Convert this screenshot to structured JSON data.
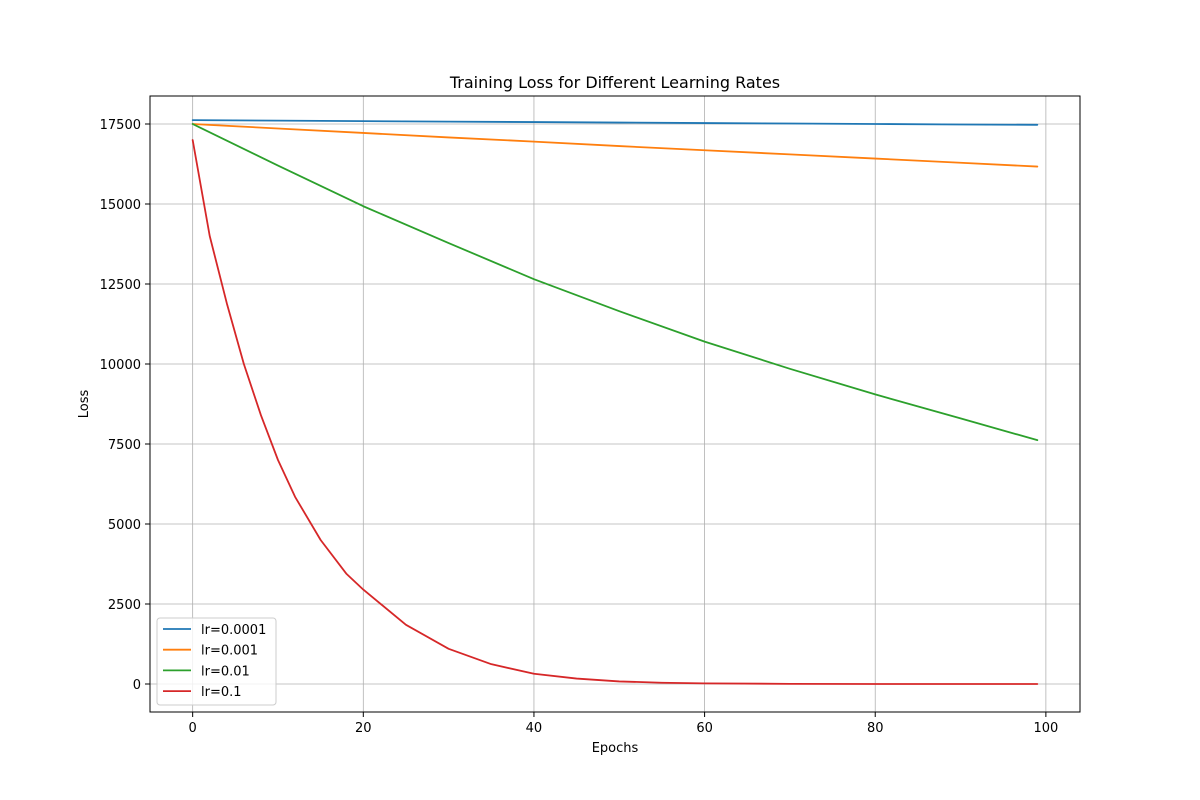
{
  "chart_data": {
    "type": "line",
    "title": "Training Loss for Different Learning Rates",
    "xlabel": "Epochs",
    "ylabel": "Loss",
    "xlim": [
      -5,
      104
    ],
    "ylim": [
      -875,
      18375
    ],
    "xticks": [
      0,
      20,
      40,
      60,
      80,
      100
    ],
    "yticks": [
      0,
      2500,
      5000,
      7500,
      10000,
      12500,
      15000,
      17500
    ],
    "grid": true,
    "legend_position": "lower-left",
    "series": [
      {
        "name": "lr=0.0001",
        "color": "#1f77b4",
        "x": [
          0,
          10,
          20,
          30,
          40,
          50,
          60,
          70,
          80,
          90,
          99
        ],
        "values": [
          17620,
          17605,
          17590,
          17575,
          17560,
          17545,
          17530,
          17515,
          17500,
          17485,
          17475
        ]
      },
      {
        "name": "lr=0.001",
        "color": "#ff7f0e",
        "x": [
          0,
          10,
          20,
          30,
          40,
          50,
          60,
          70,
          80,
          90,
          99
        ],
        "values": [
          17500,
          17360,
          17220,
          17080,
          16950,
          16810,
          16680,
          16550,
          16420,
          16290,
          16170
        ]
      },
      {
        "name": "lr=0.01",
        "color": "#2ca02c",
        "x": [
          0,
          10,
          20,
          30,
          40,
          50,
          60,
          70,
          80,
          90,
          99
        ],
        "values": [
          17500,
          16200,
          14930,
          13780,
          12650,
          11650,
          10700,
          9850,
          9050,
          8300,
          7620
        ]
      },
      {
        "name": "lr=0.1",
        "color": "#d62728",
        "x": [
          0,
          2,
          4,
          6,
          8,
          10,
          12,
          15,
          18,
          20,
          25,
          30,
          35,
          40,
          45,
          50,
          55,
          60,
          70,
          80,
          90,
          99
        ],
        "values": [
          17000,
          14000,
          11900,
          10000,
          8400,
          7000,
          5850,
          4500,
          3450,
          2950,
          1850,
          1100,
          620,
          320,
          170,
          80,
          40,
          20,
          5,
          0,
          0,
          0
        ]
      }
    ]
  }
}
